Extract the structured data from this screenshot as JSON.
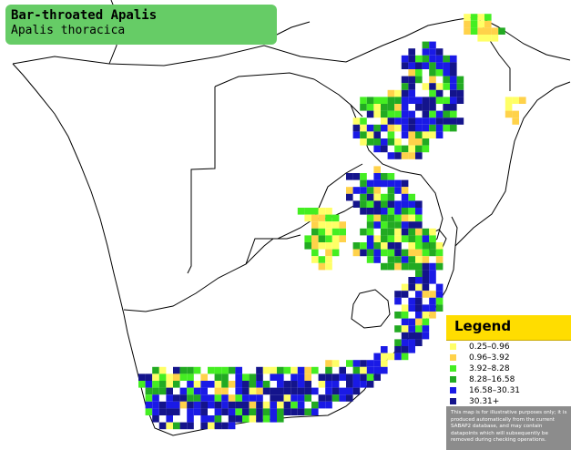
{
  "title": {
    "common_name": "Bar-throated Apalis",
    "scientific_name": "Apalis thoracica"
  },
  "legend": {
    "title": "Legend",
    "items": [
      {
        "label": "0.25–0.96",
        "color": "#ffff66"
      },
      {
        "label": "0.96–3.92",
        "color": "#ffd24a"
      },
      {
        "label": "3.92–8.28",
        "color": "#44ee22"
      },
      {
        "label": "8.28–16.58",
        "color": "#22aa22"
      },
      {
        "label": "16.58–30.31",
        "color": "#1a1ae6"
      },
      {
        "label": "30.31+",
        "color": "#14148c"
      }
    ],
    "disclaimer": "This map is for illustrative purposes only; it is produced automatically from the current SABAP2 database, and may contain datapoints which will subsequently be removed during checking operations."
  },
  "colors": {
    "background": "#ffffff",
    "title_box": "#66cc66",
    "legend_header": "#ffdd00",
    "disclaimer_bg": "#8c8c8c",
    "borders": "#000000"
  }
}
